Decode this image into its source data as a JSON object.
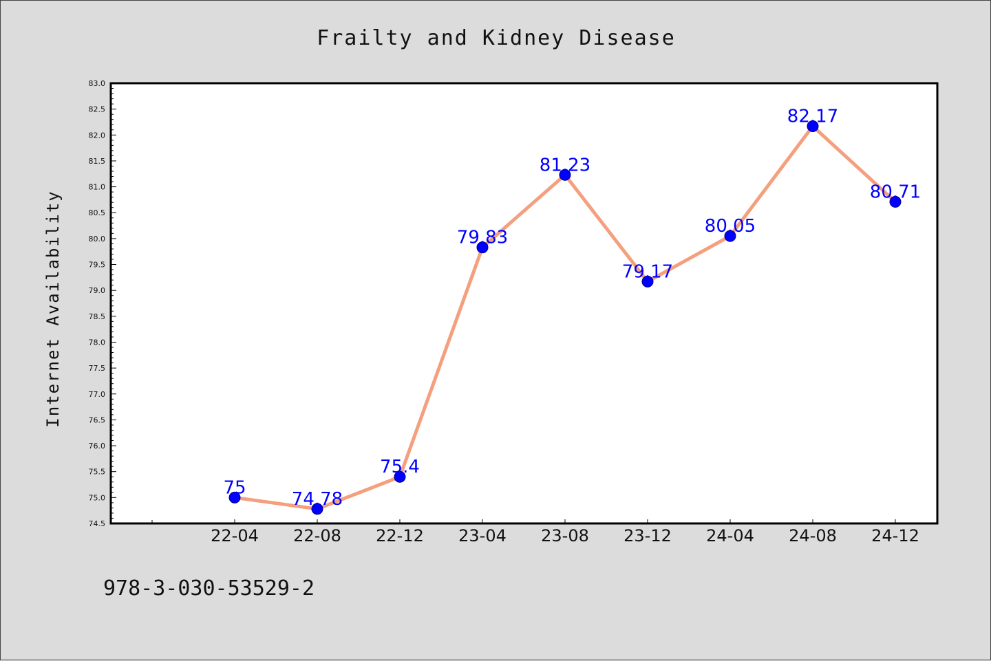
{
  "chart_data": {
    "type": "line",
    "title": "Frailty and Kidney Disease",
    "ylabel": "Internet Availability",
    "xlabel": "",
    "categories": [
      "22-04",
      "22-08",
      "22-12",
      "23-04",
      "23-08",
      "23-12",
      "24-04",
      "24-08",
      "24-12"
    ],
    "values": [
      75,
      74.78,
      75.4,
      79.83,
      81.23,
      79.17,
      80.05,
      82.17,
      80.71
    ],
    "data_labels": [
      "75",
      "74.78",
      "75.4",
      "79.83",
      "81.23",
      "79.17",
      "80.05",
      "82.17",
      "80.71"
    ],
    "ylim": [
      74.5,
      83.0
    ],
    "yticks": [
      "74.5",
      "75.0",
      "75.5",
      "76.0",
      "76.5",
      "77.0",
      "77.5",
      "78.0",
      "78.5",
      "79.0",
      "79.5",
      "80.0",
      "80.5",
      "81.0",
      "81.5",
      "82.0",
      "82.5",
      "83.0"
    ],
    "grid": false,
    "legend": "none",
    "colors": {
      "line": "#f4a07e",
      "marker": "#0000ff",
      "label": "#0000ff",
      "background": "#dcdcdc",
      "plot_background": "#ffffff"
    }
  },
  "footer_note": "978-3-030-53529-2"
}
